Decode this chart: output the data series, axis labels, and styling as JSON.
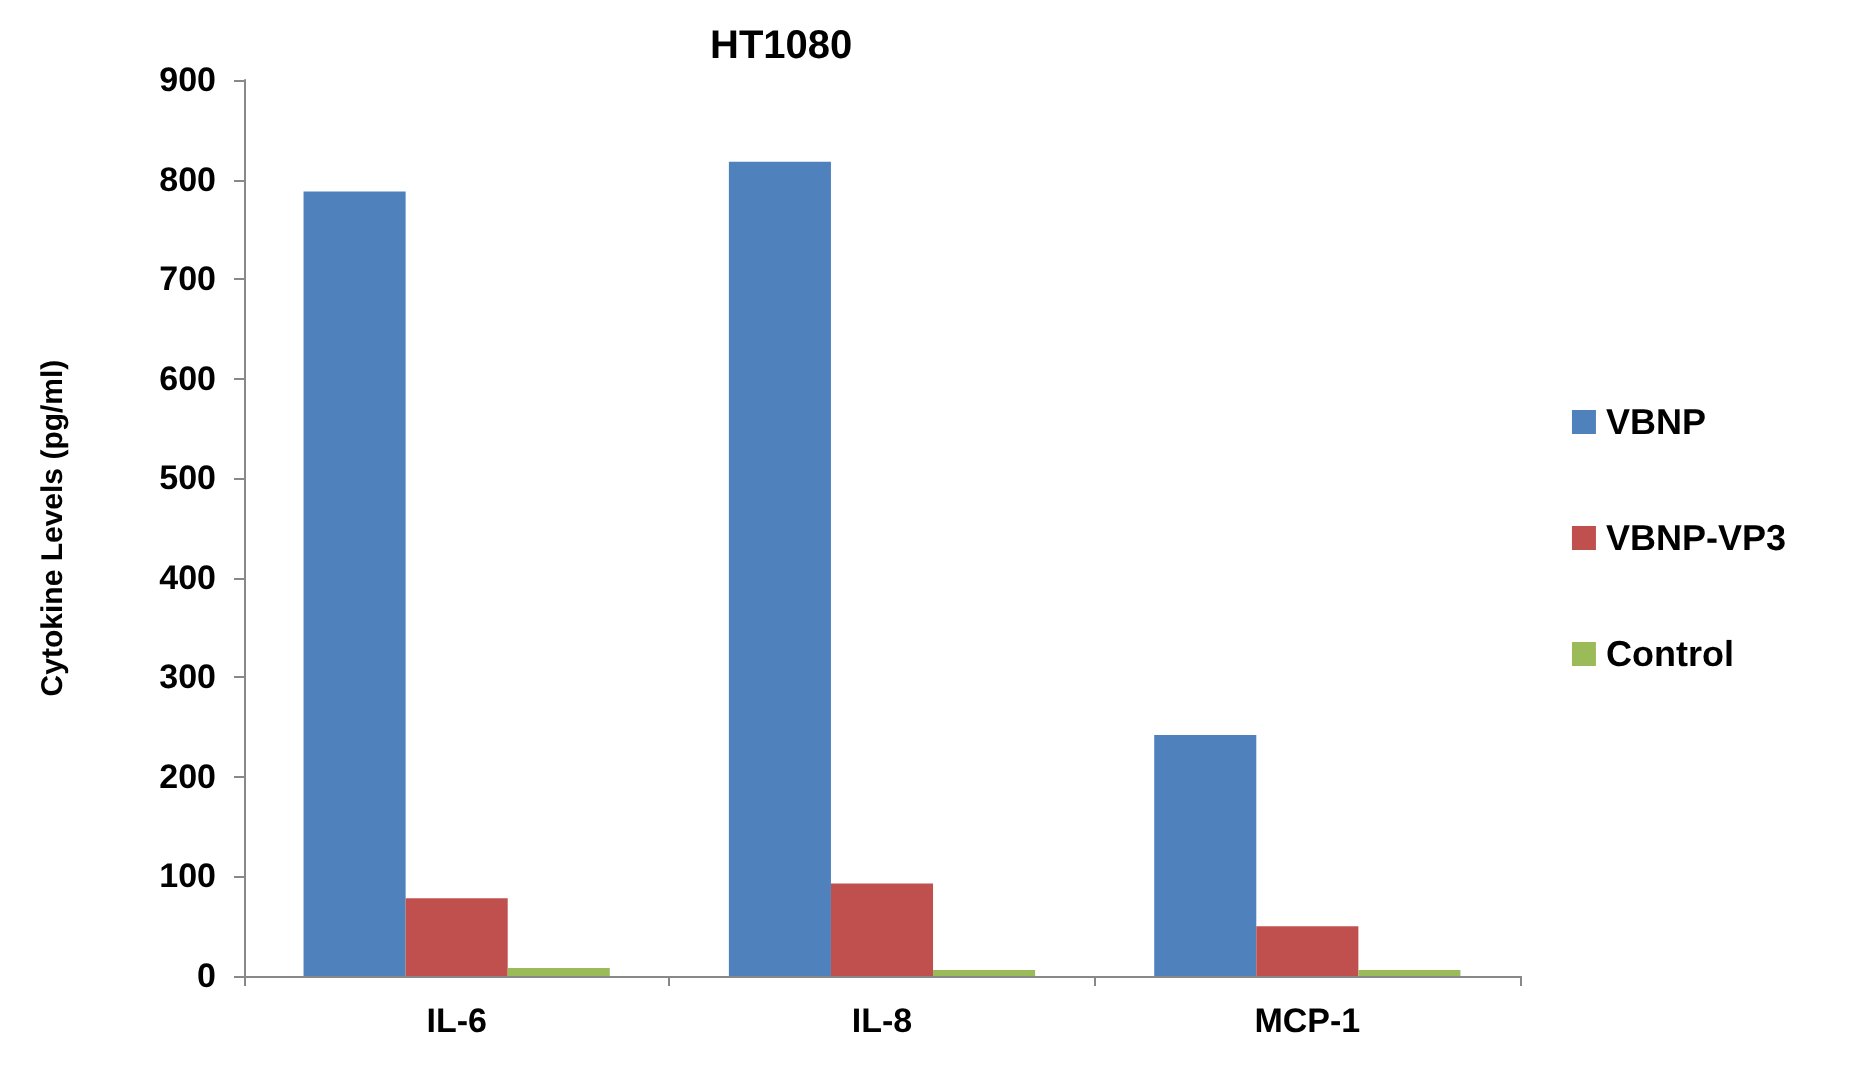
{
  "chart_data": {
    "type": "bar",
    "title": "HT1080",
    "ylabel": "Cytokine Levels (pg/ml)",
    "categories": [
      "IL-6",
      "IL-8",
      "MCP-1"
    ],
    "series": [
      {
        "name": "VBNP",
        "color": "#4f81bd",
        "values": [
          788,
          818,
          242
        ]
      },
      {
        "name": "VBNP-VP3",
        "color": "#c0504d",
        "values": [
          78,
          93,
          50
        ]
      },
      {
        "name": "Control",
        "color": "#9bbb59",
        "values": [
          8,
          6,
          6
        ]
      }
    ],
    "ylim": [
      0,
      900
    ],
    "yticks": [
      0,
      100,
      200,
      300,
      400,
      500,
      600,
      700,
      800,
      900
    ],
    "grid": false,
    "legend": "right"
  }
}
